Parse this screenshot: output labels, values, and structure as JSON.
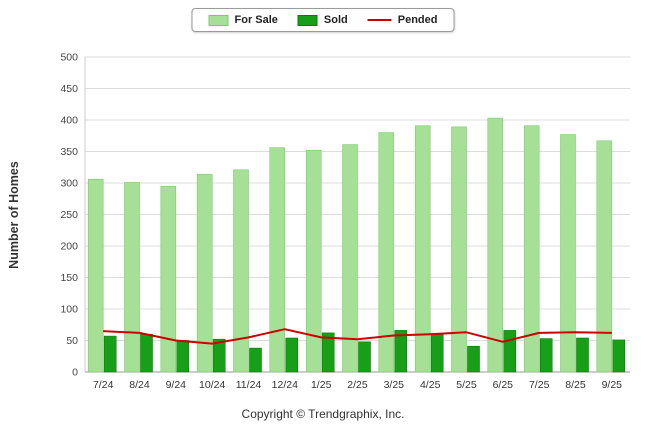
{
  "chart_data": {
    "type": "bar",
    "categories": [
      "7/24",
      "8/24",
      "9/24",
      "10/24",
      "11/24",
      "12/24",
      "1/25",
      "2/25",
      "3/25",
      "4/25",
      "5/25",
      "6/25",
      "7/25",
      "8/25",
      "9/25"
    ],
    "series": [
      {
        "name": "For Sale",
        "type": "bar",
        "color": "#a6e096",
        "border": "#7fc871",
        "values": [
          306,
          301,
          295,
          314,
          321,
          356,
          352,
          361,
          380,
          391,
          389,
          403,
          391,
          377,
          367
        ]
      },
      {
        "name": "Sold",
        "type": "bar",
        "color": "#17a017",
        "border": "#0e7a0e",
        "values": [
          57,
          60,
          50,
          52,
          38,
          54,
          62,
          48,
          66,
          60,
          41,
          66,
          53,
          54,
          51
        ]
      },
      {
        "name": "Pended",
        "type": "line",
        "color": "#cc0000",
        "values": [
          65,
          62,
          50,
          45,
          55,
          68,
          55,
          52,
          58,
          60,
          63,
          48,
          62,
          63,
          62
        ]
      }
    ],
    "title": "",
    "xlabel": "",
    "ylabel": "Number of Homes",
    "ylim": [
      0,
      500
    ],
    "ytick_step": 50,
    "grid": true,
    "legend_position": "top"
  },
  "footer": {
    "copyright": "Copyright © Trendgraphix, Inc."
  }
}
